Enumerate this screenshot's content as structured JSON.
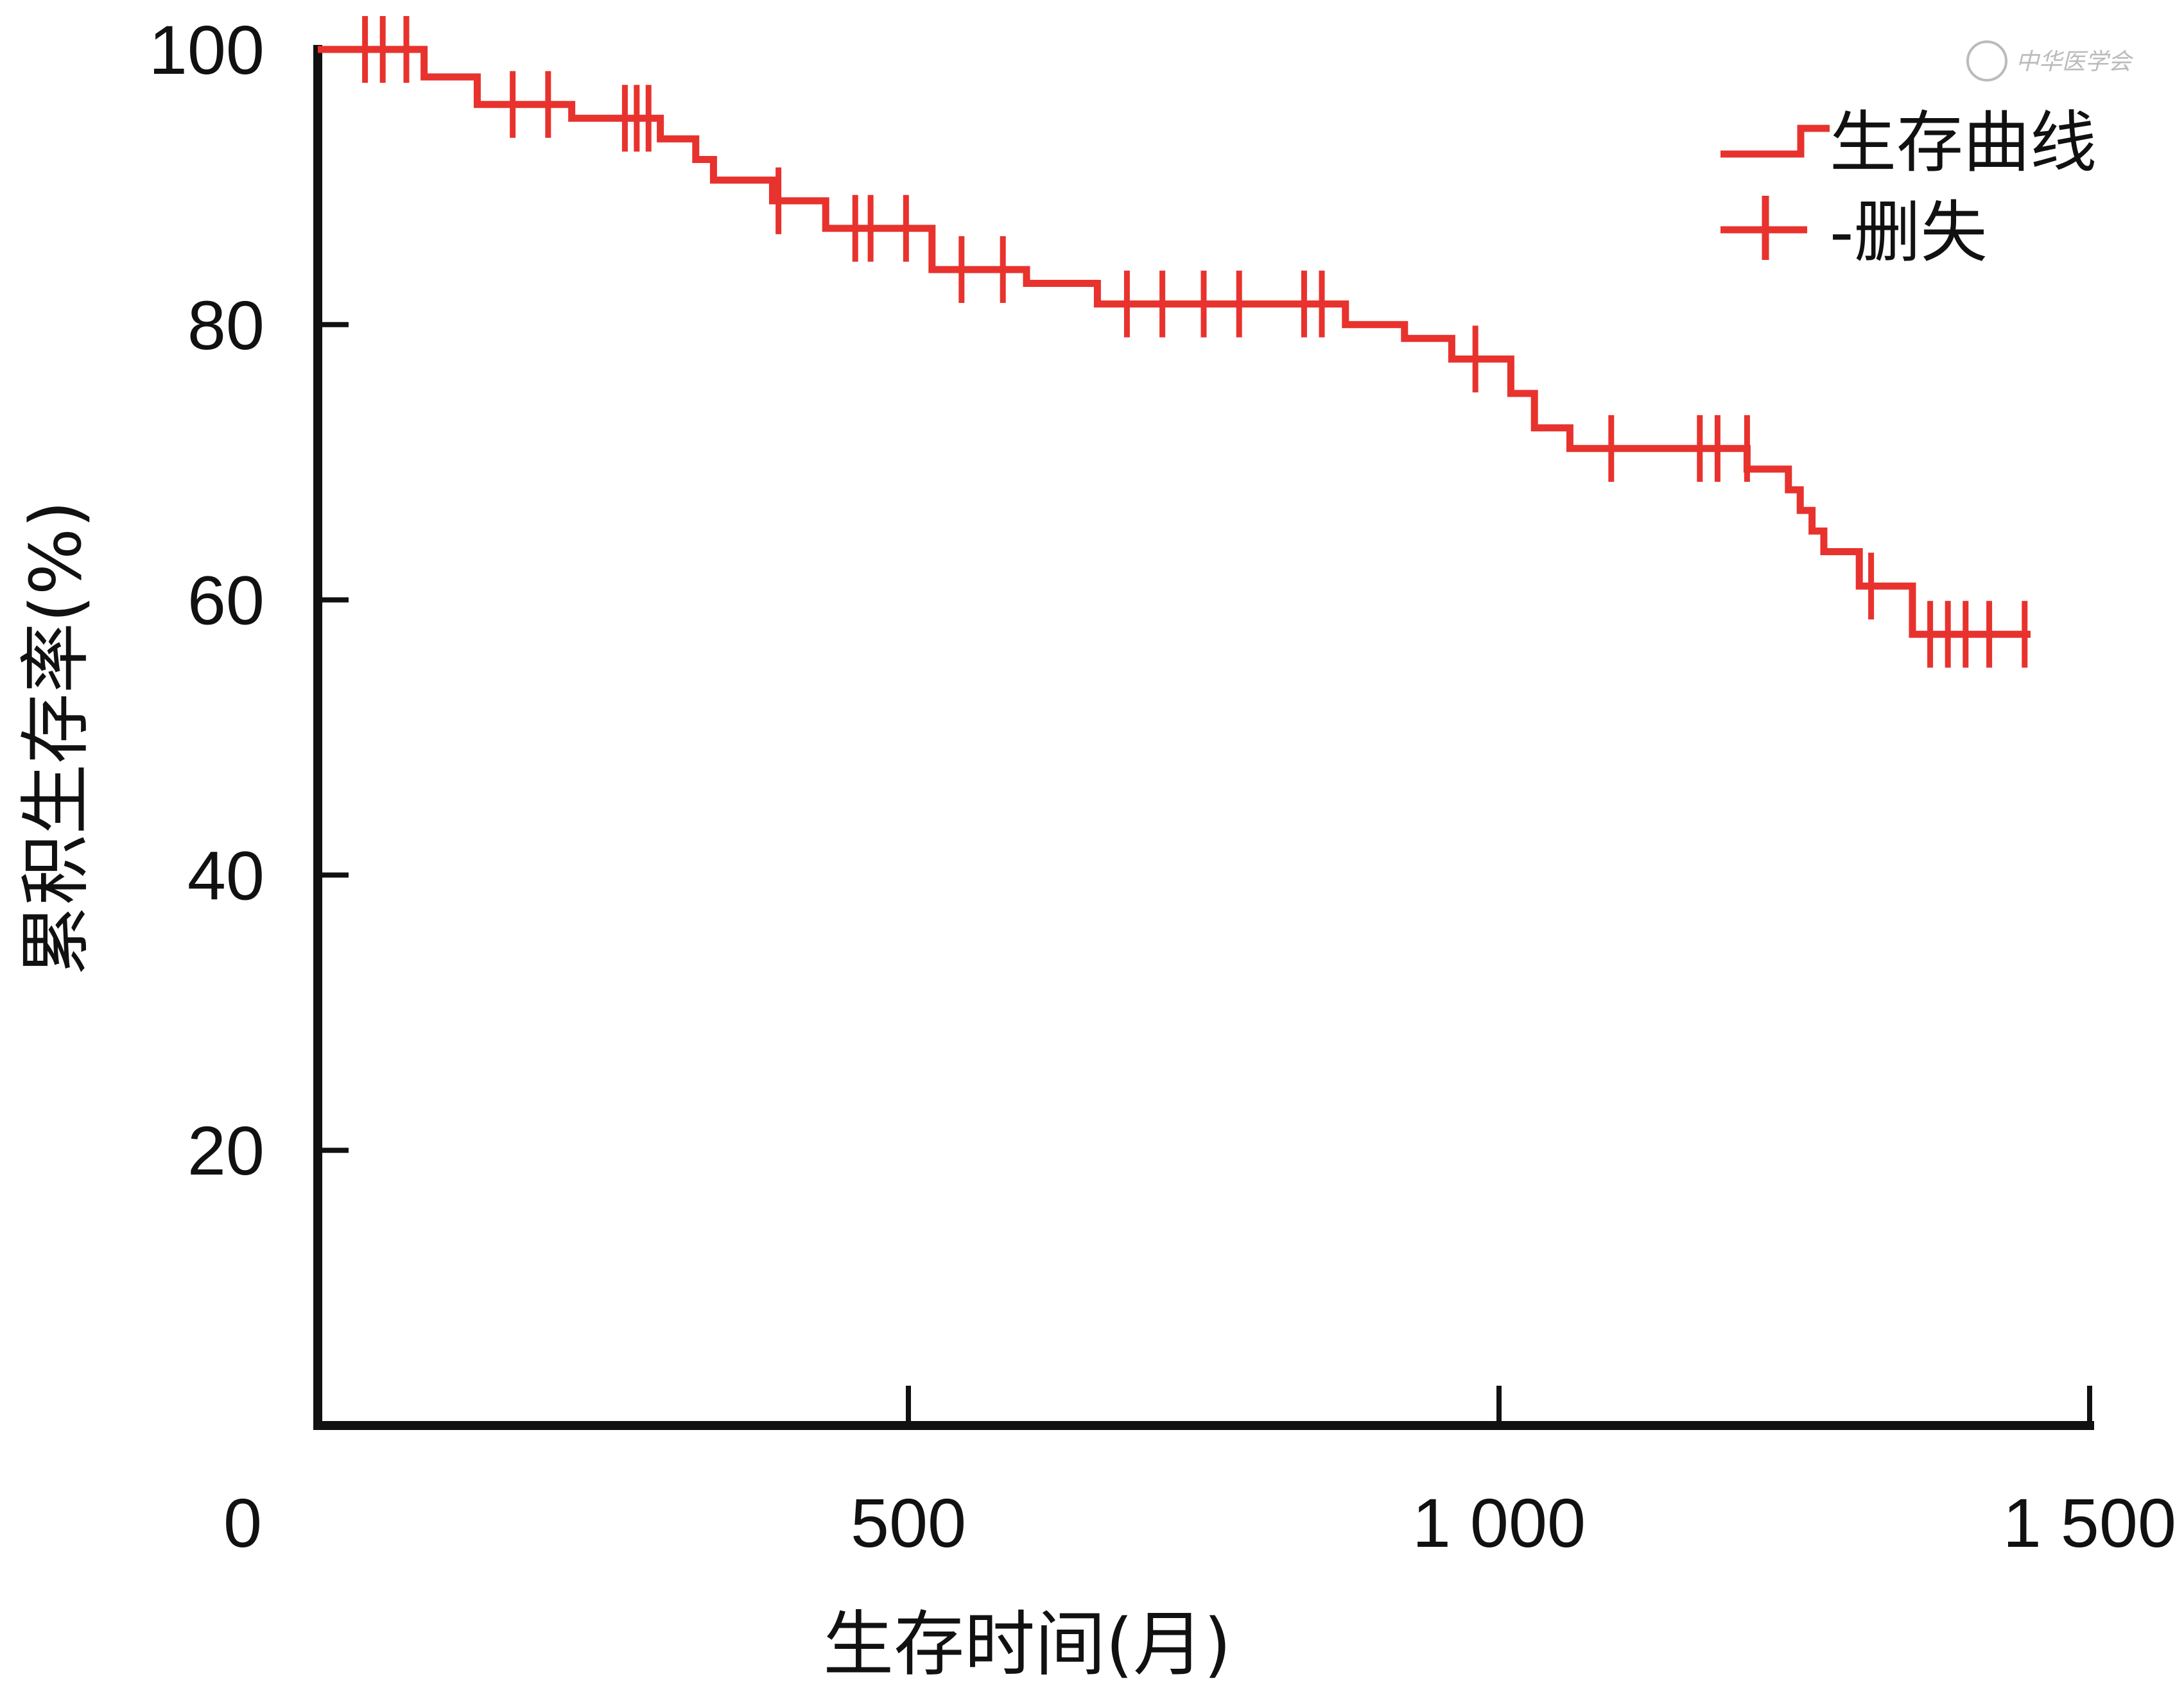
{
  "watermark": {
    "text": "中华医学会"
  },
  "colors": {
    "curve": "#e8322d",
    "axis": "#111111"
  },
  "chart_data": {
    "type": "line",
    "step": true,
    "title": "",
    "xlabel": "生存时间(月)",
    "ylabel": "累积生存率(%)",
    "xlim": [
      0,
      1500
    ],
    "ylim": [
      0,
      100
    ],
    "xticks": [
      0,
      500,
      1000,
      1500
    ],
    "xtick_labels": [
      "0",
      "500",
      "1 000",
      "1 500"
    ],
    "yticks": [
      20,
      40,
      60,
      80,
      100
    ],
    "ytick_labels": [
      "20",
      "40",
      "60",
      "80",
      "100"
    ],
    "legend": {
      "position": "top-right",
      "entries": [
        {
          "marker": "step",
          "label": "生存曲线"
        },
        {
          "marker": "plus",
          "label": "-删失"
        }
      ]
    },
    "series": [
      {
        "name": "生存曲线",
        "steps": [
          [
            0,
            100
          ],
          [
            90,
            98
          ],
          [
            135,
            96
          ],
          [
            215,
            95
          ],
          [
            290,
            93.5
          ],
          [
            320,
            92
          ],
          [
            335,
            90.5
          ],
          [
            385,
            89
          ],
          [
            430,
            87
          ],
          [
            520,
            84
          ],
          [
            600,
            83
          ],
          [
            660,
            81.5
          ],
          [
            870,
            80
          ],
          [
            920,
            79
          ],
          [
            960,
            77.5
          ],
          [
            1010,
            75
          ],
          [
            1030,
            72.5
          ],
          [
            1060,
            71
          ],
          [
            1210,
            69.5
          ],
          [
            1245,
            68
          ],
          [
            1255,
            66.5
          ],
          [
            1265,
            65
          ],
          [
            1275,
            63.5
          ],
          [
            1305,
            61
          ],
          [
            1350,
            57.5
          ],
          [
            1450,
            57.5
          ]
        ],
        "censored": [
          [
            40,
            100
          ],
          [
            55,
            100
          ],
          [
            75,
            100
          ],
          [
            165,
            96
          ],
          [
            195,
            96
          ],
          [
            260,
            95
          ],
          [
            270,
            95
          ],
          [
            280,
            95
          ],
          [
            390,
            89
          ],
          [
            455,
            87
          ],
          [
            468,
            87
          ],
          [
            498,
            87
          ],
          [
            545,
            84
          ],
          [
            580,
            84
          ],
          [
            685,
            81.5
          ],
          [
            715,
            81.5
          ],
          [
            750,
            81.5
          ],
          [
            780,
            81.5
          ],
          [
            835,
            81.5
          ],
          [
            850,
            81.5
          ],
          [
            980,
            77.5
          ],
          [
            1095,
            71
          ],
          [
            1170,
            71
          ],
          [
            1185,
            71
          ],
          [
            1210,
            71
          ],
          [
            1315,
            61
          ],
          [
            1365,
            57.5
          ],
          [
            1380,
            57.5
          ],
          [
            1395,
            57.5
          ],
          [
            1415,
            57.5
          ],
          [
            1445,
            57.5
          ]
        ]
      }
    ]
  }
}
